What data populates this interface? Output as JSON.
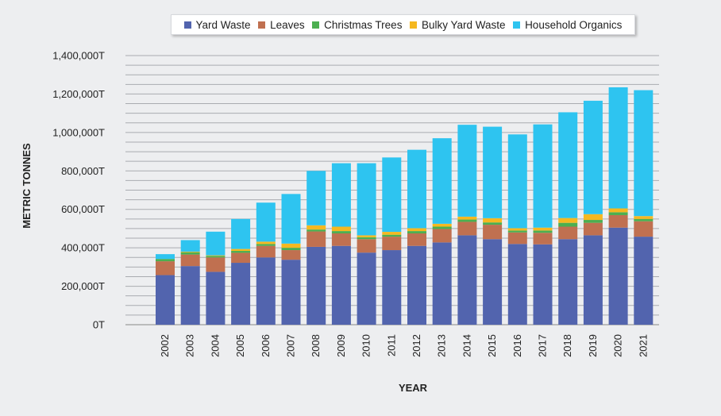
{
  "chart_data": {
    "type": "bar",
    "stacked": true,
    "title": "",
    "xlabel": "YEAR",
    "ylabel": "METRIC TONNES",
    "ylim": [
      0,
      1400000
    ],
    "yticks": [
      0,
      200000,
      400000,
      600000,
      800000,
      1000000,
      1200000,
      1400000
    ],
    "ytick_labels": [
      "0T",
      "200,000T",
      "400,000T",
      "600,000T",
      "800,000T",
      "1,000,000T",
      "1,200,000T",
      "1,400,000T"
    ],
    "grid": true,
    "legend_position": "top",
    "categories": [
      "2002",
      "2003",
      "2004",
      "2005",
      "2006",
      "2007",
      "2008",
      "2009",
      "2010",
      "2011",
      "2012",
      "2013",
      "2014",
      "2015",
      "2016",
      "2017",
      "2018",
      "2019",
      "2020",
      "2021"
    ],
    "series": [
      {
        "name": "Yard Waste",
        "color": "#5264ae",
        "values": [
          258000,
          305000,
          275000,
          322000,
          350000,
          338000,
          405000,
          410000,
          375000,
          388000,
          410000,
          428000,
          465000,
          445000,
          420000,
          418000,
          445000,
          465000,
          505000,
          458000
        ]
      },
      {
        "name": "Leaves",
        "color": "#c07050",
        "values": [
          72000,
          60000,
          75000,
          52000,
          60000,
          50000,
          80000,
          65000,
          70000,
          70000,
          65000,
          70000,
          70000,
          75000,
          60000,
          60000,
          65000,
          65000,
          65000,
          80000
        ]
      },
      {
        "name": "Christmas Trees",
        "color": "#4caf50",
        "values": [
          12000,
          12000,
          8000,
          10000,
          10000,
          12000,
          10000,
          12000,
          10000,
          10000,
          12000,
          12000,
          12000,
          12000,
          10000,
          12000,
          20000,
          15000,
          15000,
          12000
        ]
      },
      {
        "name": "Bulky Yard Waste",
        "color": "#f5b820",
        "values": [
          0,
          3000,
          3000,
          10000,
          12000,
          22000,
          22000,
          23000,
          10000,
          15000,
          15000,
          15000,
          15000,
          22000,
          12000,
          15000,
          25000,
          30000,
          20000,
          15000
        ]
      },
      {
        "name": "Household Organics",
        "color": "#2ec4f0",
        "values": [
          25000,
          60000,
          123000,
          156000,
          203000,
          258000,
          283000,
          330000,
          375000,
          387000,
          408000,
          445000,
          478000,
          476000,
          488000,
          537000,
          550000,
          590000,
          630000,
          655000
        ]
      }
    ]
  }
}
